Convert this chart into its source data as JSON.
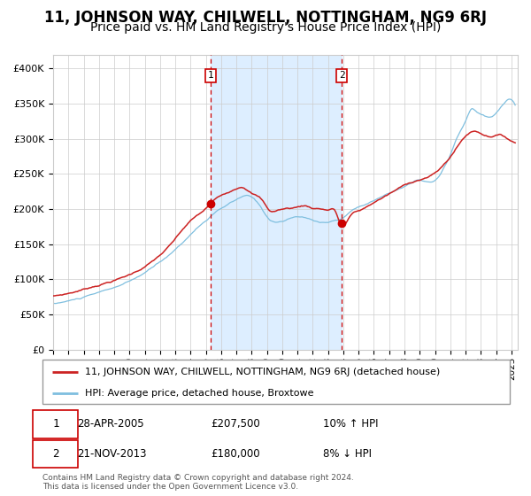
{
  "title": "11, JOHNSON WAY, CHILWELL, NOTTINGHAM, NG9 6RJ",
  "subtitle": "Price paid vs. HM Land Registry's House Price Index (HPI)",
  "sale1_date_str": "28-APR-2005",
  "sale1_price": 207500,
  "sale1_hpi_pct": "10% ↑ HPI",
  "sale2_date_str": "21-NOV-2013",
  "sale2_price": 180000,
  "sale2_hpi_pct": "8% ↓ HPI",
  "legend_line1": "11, JOHNSON WAY, CHILWELL, NOTTINGHAM, NG9 6RJ (detached house)",
  "legend_line2": "HPI: Average price, detached house, Broxtowe",
  "footer": "Contains HM Land Registry data © Crown copyright and database right 2024.\nThis data is licensed under the Open Government Licence v3.0.",
  "hpi_color": "#7fbfdf",
  "price_color": "#cc2222",
  "dot_color": "#cc0000",
  "shade_color": "#ddeeff",
  "vline_color": "#cc0000",
  "background_color": "#ffffff",
  "grid_color": "#cccccc",
  "yticks": [
    0,
    50000,
    100000,
    150000,
    200000,
    250000,
    300000,
    350000,
    400000
  ],
  "title_fontsize": 12,
  "subtitle_fontsize": 10
}
